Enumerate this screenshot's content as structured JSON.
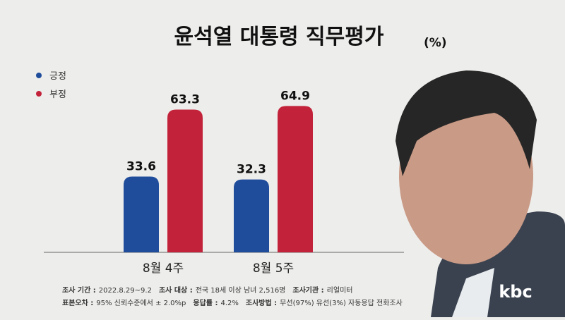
{
  "chart_data": {
    "type": "bar",
    "title": "윤석열 대통령 직무평가",
    "unit": "(%)",
    "categories": [
      "8월 4주",
      "8월 5주"
    ],
    "series": [
      {
        "name": "긍정",
        "color": "#1f4d9b",
        "values": [
          33.6,
          32.3
        ]
      },
      {
        "name": "부정",
        "color": "#c3233a",
        "values": [
          63.3,
          64.9
        ]
      }
    ],
    "notes": [
      [
        {
          "label": "조사 기간 :",
          "value": "2022.8.29~9.2"
        },
        {
          "label": "조사 대상 :",
          "value": "전국 18세 이상 남녀 2,516명"
        },
        {
          "label": "조사기관 :",
          "value": "리얼미터"
        }
      ],
      [
        {
          "label": "표본오차 :",
          "value": "95% 신뢰수준에서 ± 2.0%p"
        },
        {
          "label": "응답률 :",
          "value": "4.2%"
        },
        {
          "label": "조사방법 :",
          "value": "무선(97%) 유선(3%) 자동응답 전화조사"
        }
      ]
    ]
  },
  "logo": "kbc"
}
